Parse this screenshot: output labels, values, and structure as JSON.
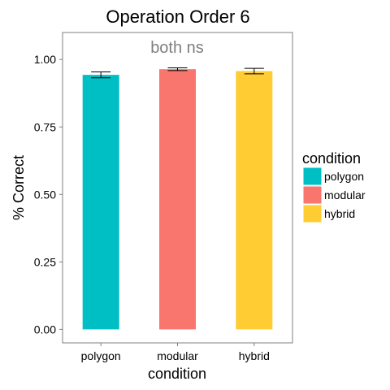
{
  "chart_data": {
    "type": "bar",
    "title": "Operation Order 6",
    "annotation": "both ns",
    "xlabel": "condition",
    "ylabel": "% Correct",
    "categories": [
      "polygon",
      "modular",
      "hybrid"
    ],
    "values": [
      0.943,
      0.964,
      0.957
    ],
    "errors": [
      {
        "low": 0.932,
        "high": 0.954
      },
      {
        "low": 0.959,
        "high": 0.969
      },
      {
        "low": 0.947,
        "high": 0.967
      }
    ],
    "colors": [
      "#00bfc4",
      "#f8766d",
      "#ffcc33"
    ],
    "ylim": [
      -0.05,
      1.1
    ],
    "yticks": [
      0.0,
      0.25,
      0.5,
      0.75,
      1.0
    ],
    "ytick_labels": [
      "0.00",
      "0.25",
      "0.50",
      "0.75",
      "1.00"
    ],
    "grid": false,
    "legend": {
      "title": "condition",
      "placement": "right",
      "items": [
        "polygon",
        "modular",
        "hybrid"
      ]
    }
  }
}
